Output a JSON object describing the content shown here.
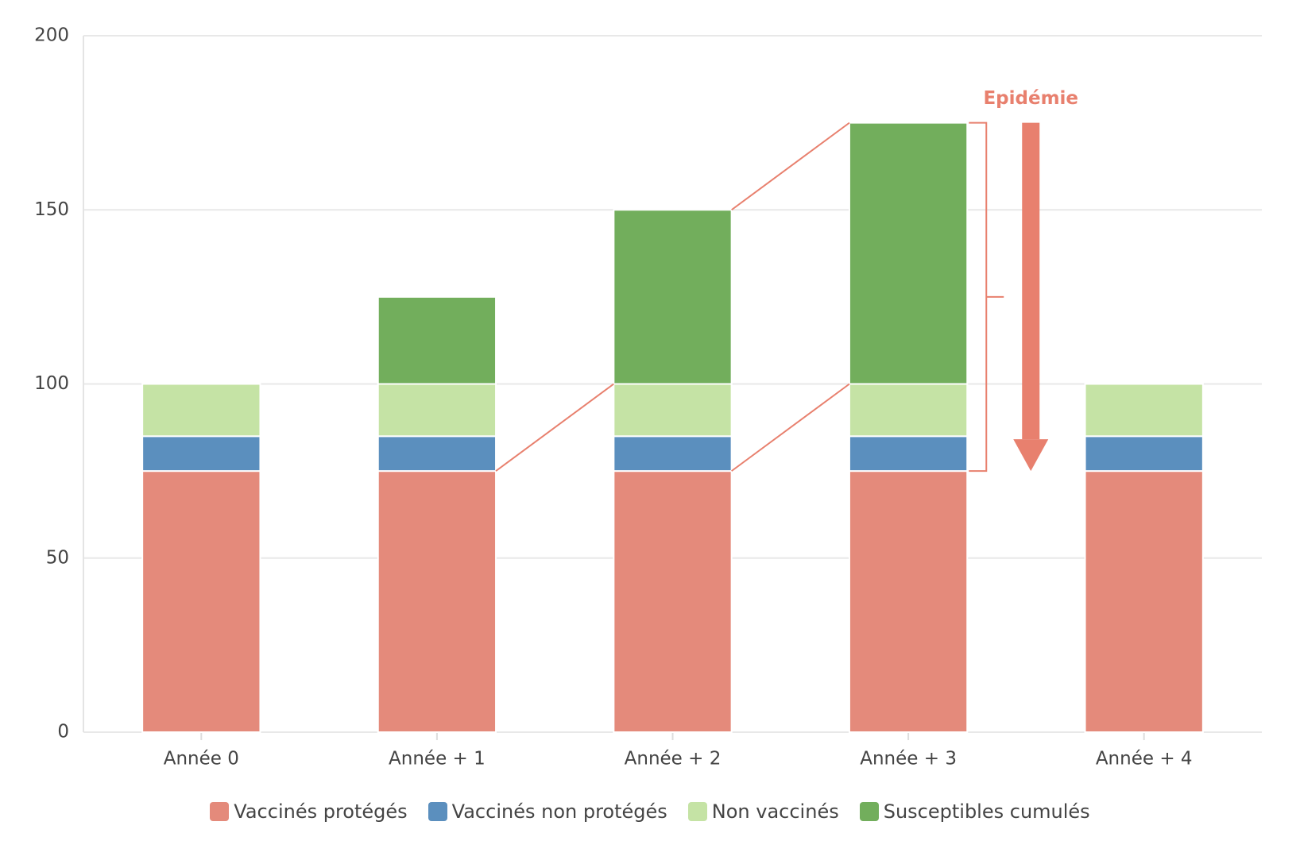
{
  "chart_data": {
    "type": "stacked_bar",
    "categories": [
      "Année 0",
      "Année + 1",
      "Année + 2",
      "Année + 3",
      "Année + 4"
    ],
    "series": [
      {
        "name": "Vaccinés protégés",
        "color": "#e48a7b",
        "values": [
          75,
          75,
          75,
          75,
          75
        ]
      },
      {
        "name": "Vaccinés non protégés",
        "color": "#5b8fbe",
        "values": [
          10,
          10,
          10,
          10,
          10
        ]
      },
      {
        "name": "Non vaccinés",
        "color": "#c5e3a5",
        "values": [
          15,
          15,
          15,
          15,
          15
        ]
      },
      {
        "name": "Susceptibles cumulés",
        "color": "#72ae5c",
        "values": [
          0,
          25,
          50,
          75,
          0
        ]
      }
    ],
    "ylim": [
      0,
      200
    ],
    "yticks": [
      0,
      50,
      100,
      150,
      200
    ],
    "grid": true,
    "annotation": "Epidémie",
    "legend": "bottom"
  }
}
